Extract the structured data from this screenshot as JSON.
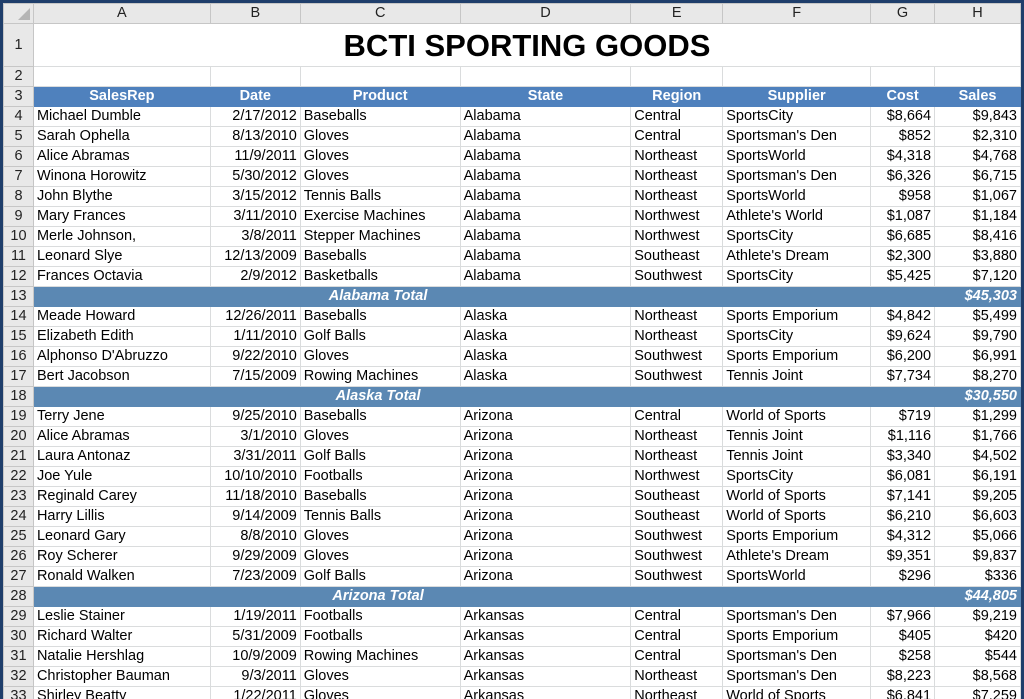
{
  "columns": [
    "A",
    "B",
    "C",
    "D",
    "E",
    "F",
    "G",
    "H"
  ],
  "title": "BCTI SPORTING GOODS",
  "headers": [
    "SalesRep",
    "Date",
    "Product",
    "State",
    "Region",
    "Supplier",
    "Cost",
    "Sales"
  ],
  "rows": [
    {
      "n": 4,
      "type": "data",
      "cells": [
        "Michael Dumble",
        "2/17/2012",
        "Baseballs",
        "Alabama",
        "Central",
        "SportsCity",
        "$8,664",
        "$9,843"
      ]
    },
    {
      "n": 5,
      "type": "data",
      "cells": [
        "Sarah Ophella",
        "8/13/2010",
        "Gloves",
        "Alabama",
        "Central",
        "Sportsman's Den",
        "$852",
        "$2,310"
      ]
    },
    {
      "n": 6,
      "type": "data",
      "cells": [
        "Alice Abramas",
        "11/9/2011",
        "Gloves",
        "Alabama",
        "Northeast",
        "SportsWorld",
        "$4,318",
        "$4,768"
      ]
    },
    {
      "n": 7,
      "type": "data",
      "cells": [
        "Winona Horowitz",
        "5/30/2012",
        "Gloves",
        "Alabama",
        "Northeast",
        "Sportsman's Den",
        "$6,326",
        "$6,715"
      ]
    },
    {
      "n": 8,
      "type": "data",
      "cells": [
        "John Blythe",
        "3/15/2012",
        "Tennis Balls",
        "Alabama",
        "Northeast",
        "SportsWorld",
        "$958",
        "$1,067"
      ]
    },
    {
      "n": 9,
      "type": "data",
      "cells": [
        "Mary Frances",
        "3/11/2010",
        "Exercise Machines",
        "Alabama",
        "Northwest",
        "Athlete's World",
        "$1,087",
        "$1,184"
      ]
    },
    {
      "n": 10,
      "type": "data",
      "cells": [
        "Merle Johnson,",
        "3/8/2011",
        "Stepper Machines",
        "Alabama",
        "Northwest",
        "SportsCity",
        "$6,685",
        "$8,416"
      ]
    },
    {
      "n": 11,
      "type": "data",
      "cells": [
        "Leonard Slye",
        "12/13/2009",
        "Baseballs",
        "Alabama",
        "Southeast",
        "Athlete's Dream",
        "$2,300",
        "$3,880"
      ]
    },
    {
      "n": 12,
      "type": "data",
      "cells": [
        "Frances Octavia",
        "2/9/2012",
        "Basketballs",
        "Alabama",
        "Southwest",
        "SportsCity",
        "$5,425",
        "$7,120"
      ]
    },
    {
      "n": 13,
      "type": "total",
      "label": "Alabama Total",
      "value": "$45,303"
    },
    {
      "n": 14,
      "type": "data",
      "cells": [
        "Meade Howard",
        "12/26/2011",
        "Baseballs",
        "Alaska",
        "Northeast",
        "Sports Emporium",
        "$4,842",
        "$5,499"
      ]
    },
    {
      "n": 15,
      "type": "data",
      "cells": [
        "Elizabeth Edith",
        "1/11/2010",
        "Golf Balls",
        "Alaska",
        "Northeast",
        "SportsCity",
        "$9,624",
        "$9,790"
      ]
    },
    {
      "n": 16,
      "type": "data",
      "cells": [
        "Alphonso D'Abruzzo",
        "9/22/2010",
        "Gloves",
        "Alaska",
        "Southwest",
        "Sports Emporium",
        "$6,200",
        "$6,991"
      ]
    },
    {
      "n": 17,
      "type": "data",
      "cells": [
        "Bert Jacobson",
        "7/15/2009",
        "Rowing Machines",
        "Alaska",
        "Southwest",
        "Tennis Joint",
        "$7,734",
        "$8,270"
      ]
    },
    {
      "n": 18,
      "type": "total",
      "label": "Alaska Total",
      "value": "$30,550"
    },
    {
      "n": 19,
      "type": "data",
      "cells": [
        "Terry Jene",
        "9/25/2010",
        "Baseballs",
        "Arizona",
        "Central",
        "World of Sports",
        "$719",
        "$1,299"
      ]
    },
    {
      "n": 20,
      "type": "data",
      "cells": [
        "Alice Abramas",
        "3/1/2010",
        "Gloves",
        "Arizona",
        "Northeast",
        "Tennis Joint",
        "$1,116",
        "$1,766"
      ]
    },
    {
      "n": 21,
      "type": "data",
      "cells": [
        "Laura Antonaz",
        "3/31/2011",
        "Golf Balls",
        "Arizona",
        "Northeast",
        "Tennis Joint",
        "$3,340",
        "$4,502"
      ]
    },
    {
      "n": 22,
      "type": "data",
      "cells": [
        "Joe Yule",
        "10/10/2010",
        "Footballs",
        "Arizona",
        "Northwest",
        "SportsCity",
        "$6,081",
        "$6,191"
      ]
    },
    {
      "n": 23,
      "type": "data",
      "cells": [
        "Reginald Carey",
        "11/18/2010",
        "Baseballs",
        "Arizona",
        "Southeast",
        "World of Sports",
        "$7,141",
        "$9,205"
      ]
    },
    {
      "n": 24,
      "type": "data",
      "cells": [
        "Harry Lillis",
        "9/14/2009",
        "Tennis Balls",
        "Arizona",
        "Southeast",
        "World of Sports",
        "$6,210",
        "$6,603"
      ]
    },
    {
      "n": 25,
      "type": "data",
      "cells": [
        "Leonard Gary",
        "8/8/2010",
        "Gloves",
        "Arizona",
        "Southwest",
        "Sports Emporium",
        "$4,312",
        "$5,066"
      ]
    },
    {
      "n": 26,
      "type": "data",
      "cells": [
        "Roy Scherer",
        "9/29/2009",
        "Gloves",
        "Arizona",
        "Southwest",
        "Athlete's Dream",
        "$9,351",
        "$9,837"
      ]
    },
    {
      "n": 27,
      "type": "data",
      "cells": [
        "Ronald Walken",
        "7/23/2009",
        "Golf Balls",
        "Arizona",
        "Southwest",
        "SportsWorld",
        "$296",
        "$336"
      ]
    },
    {
      "n": 28,
      "type": "total",
      "label": "Arizona Total",
      "value": "$44,805"
    },
    {
      "n": 29,
      "type": "data",
      "cells": [
        "Leslie Stainer",
        "1/19/2011",
        "Footballs",
        "Arkansas",
        "Central",
        "Sportsman's Den",
        "$7,966",
        "$9,219"
      ]
    },
    {
      "n": 30,
      "type": "data",
      "cells": [
        "Richard Walter",
        "5/31/2009",
        "Footballs",
        "Arkansas",
        "Central",
        "Sports Emporium",
        "$405",
        "$420"
      ]
    },
    {
      "n": 31,
      "type": "data",
      "cells": [
        "Natalie Hershlag",
        "10/9/2009",
        "Rowing Machines",
        "Arkansas",
        "Central",
        "Sportsman's Den",
        "$258",
        "$544"
      ]
    },
    {
      "n": 32,
      "type": "data",
      "cells": [
        "Christopher Bauman",
        "9/3/2011",
        "Gloves",
        "Arkansas",
        "Northeast",
        "Sportsman's Den",
        "$8,223",
        "$8,568"
      ]
    },
    {
      "n": 33,
      "type": "data",
      "cells": [
        "Shirley Beatty",
        "1/22/2011",
        "Gloves",
        "Arkansas",
        "Northeast",
        "World of Sports",
        "$6,841",
        "$7,259"
      ]
    }
  ]
}
